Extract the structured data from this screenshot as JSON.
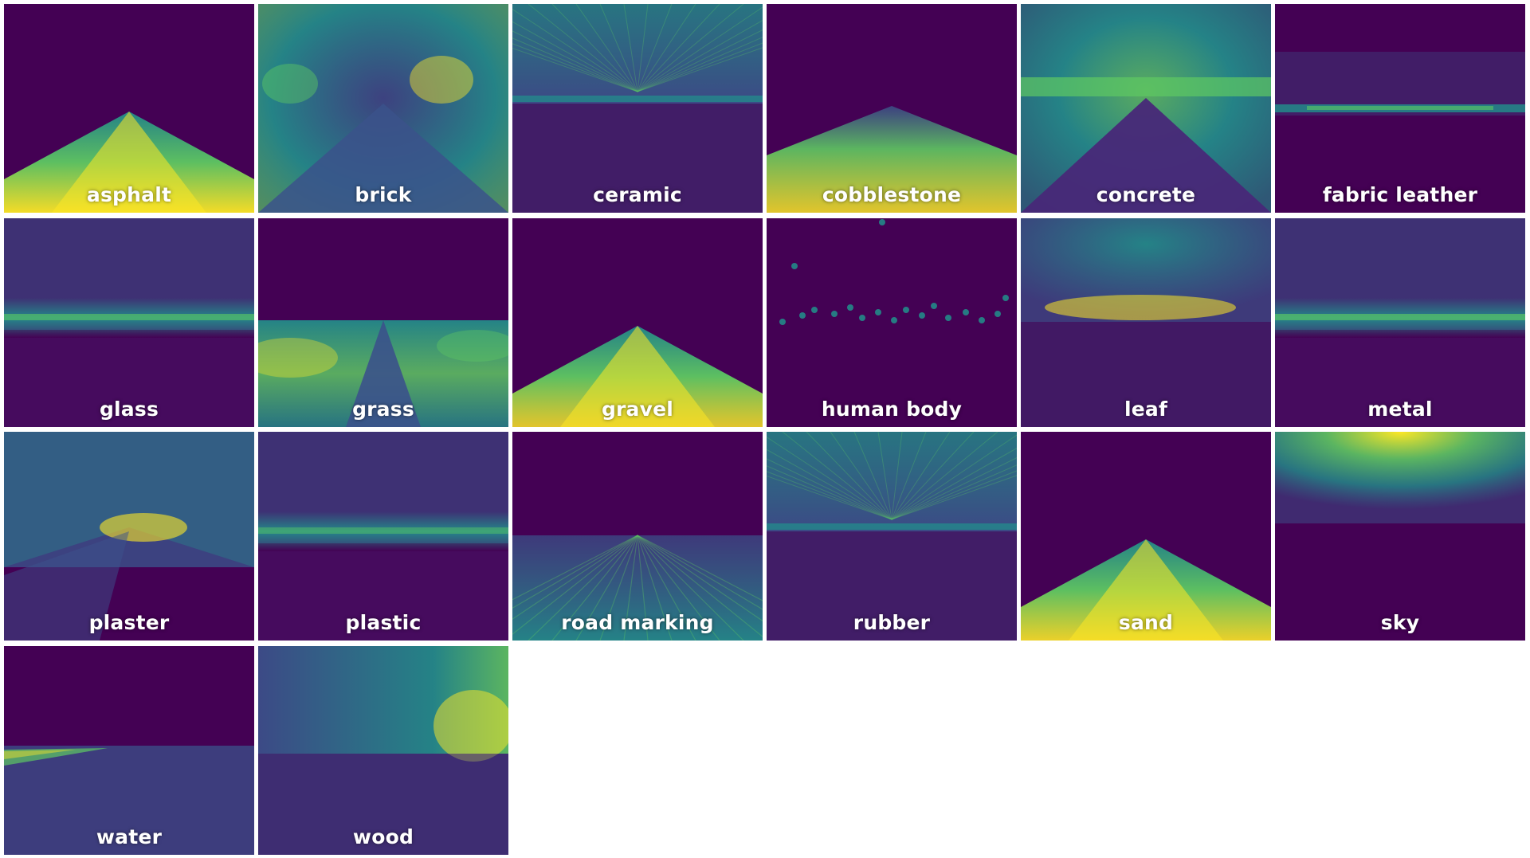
{
  "colormap": [
    "#440154",
    "#3b528b",
    "#21918c",
    "#5ec962",
    "#fde725"
  ],
  "tiles": [
    {
      "label": "asphalt",
      "pattern": "ground-cone",
      "intensity": 0.95
    },
    {
      "label": "brick",
      "pattern": "walls",
      "intensity": 0.65
    },
    {
      "label": "ceramic",
      "pattern": "ceiling-lines",
      "intensity": 0.55
    },
    {
      "label": "cobblestone",
      "pattern": "ground-wide",
      "intensity": 0.85
    },
    {
      "label": "concrete",
      "pattern": "horizon-walls",
      "intensity": 0.8
    },
    {
      "label": "fabric leather",
      "pattern": "horizon-thin",
      "intensity": 0.45
    },
    {
      "label": "glass",
      "pattern": "horizon-band",
      "intensity": 0.6
    },
    {
      "label": "grass",
      "pattern": "ground-sides",
      "intensity": 0.8
    },
    {
      "label": "gravel",
      "pattern": "ground-cone",
      "intensity": 0.85
    },
    {
      "label": "human body",
      "pattern": "dots",
      "intensity": 0.4
    },
    {
      "label": "leaf",
      "pattern": "horizon-above",
      "intensity": 0.8
    },
    {
      "label": "metal",
      "pattern": "horizon-band",
      "intensity": 0.65
    },
    {
      "label": "plaster",
      "pattern": "walls-center",
      "intensity": 0.6
    },
    {
      "label": "plastic",
      "pattern": "horizon-band",
      "intensity": 0.45
    },
    {
      "label": "road marking",
      "pattern": "ground-lines",
      "intensity": 0.5
    },
    {
      "label": "rubber",
      "pattern": "ceiling-lines",
      "intensity": 0.5
    },
    {
      "label": "sand",
      "pattern": "ground-cone",
      "intensity": 0.9
    },
    {
      "label": "sky",
      "pattern": "sky",
      "intensity": 0.95
    },
    {
      "label": "water",
      "pattern": "water",
      "intensity": 0.6
    },
    {
      "label": "wood",
      "pattern": "walls-right",
      "intensity": 0.7
    }
  ]
}
